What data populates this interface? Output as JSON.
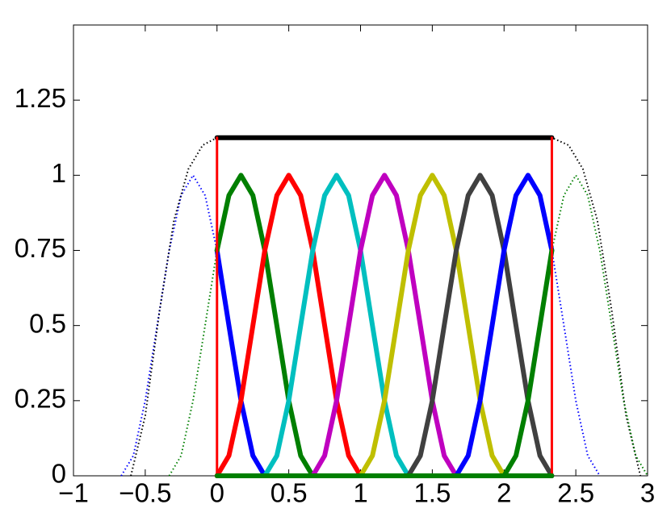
{
  "chart_data": {
    "type": "line",
    "xlim": [
      -1,
      3
    ],
    "ylim": [
      0,
      1.5
    ],
    "xticks": [
      {
        "value": -1,
        "label": "−1"
      },
      {
        "value": -0.5,
        "label": "−0.5"
      },
      0,
      0.5,
      1,
      1.5,
      2,
      2.5,
      3
    ],
    "yticks": [
      0,
      0.25,
      0.5,
      0.75,
      1,
      1.25
    ],
    "series": [
      {
        "color": "#0000ff",
        "style": "dotted",
        "x": [
          -0.667,
          -0.583,
          -0.5,
          -0.417,
          -0.333,
          -0.25,
          -0.167,
          -0.083,
          0
        ],
        "values": [
          0,
          0.067,
          0.25,
          0.5,
          0.75,
          0.933,
          1,
          0.933,
          0.75
        ]
      },
      {
        "color": "#007f00",
        "style": "dotted",
        "x": [
          -0.333,
          -0.25,
          -0.167,
          -0.083,
          0
        ],
        "values": [
          0,
          0.067,
          0.25,
          0.5,
          0.75
        ]
      },
      {
        "color": "#000000",
        "style": "dotted",
        "x": [
          -0.6,
          -0.5,
          -0.4,
          -0.3,
          -0.2,
          -0.1,
          0,
          2.333,
          2.45,
          2.55,
          2.65,
          2.75,
          2.85,
          2.95
        ],
        "values": [
          0,
          0.2,
          0.55,
          0.85,
          1.02,
          1.1,
          1.125,
          1.125,
          1.1,
          1.02,
          0.85,
          0.55,
          0.2,
          0
        ]
      },
      {
        "color": "#0000ff",
        "style": "solid",
        "x": [
          0,
          0.083,
          0.167,
          0.25,
          0.333
        ],
        "values": [
          0.75,
          0.5,
          0.25,
          0.067,
          0
        ]
      },
      {
        "color": "#007f00",
        "style": "solid",
        "x": [
          0,
          0.083,
          0.167,
          0.25,
          0.333,
          0.417,
          0.5,
          0.583,
          0.667
        ],
        "values": [
          0.75,
          0.933,
          1,
          0.933,
          0.75,
          0.5,
          0.25,
          0.067,
          0
        ]
      },
      {
        "color": "#ff0000",
        "style": "solid",
        "x": [
          0,
          0.083,
          0.167,
          0.25,
          0.333,
          0.417,
          0.5,
          0.583,
          0.667,
          0.75,
          0.833,
          0.917,
          1
        ],
        "values": [
          0,
          0.067,
          0.25,
          0.5,
          0.75,
          0.933,
          1,
          0.933,
          0.75,
          0.5,
          0.25,
          0.067,
          0
        ]
      },
      {
        "color": "#00bfbf",
        "style": "solid",
        "x": [
          0.333,
          0.417,
          0.5,
          0.583,
          0.667,
          0.75,
          0.833,
          0.917,
          1,
          1.083,
          1.167,
          1.25,
          1.333
        ],
        "values": [
          0,
          0.067,
          0.25,
          0.5,
          0.75,
          0.933,
          1,
          0.933,
          0.75,
          0.5,
          0.25,
          0.067,
          0
        ]
      },
      {
        "color": "#bf00bf",
        "style": "solid",
        "x": [
          0.667,
          0.75,
          0.833,
          0.917,
          1,
          1.083,
          1.167,
          1.25,
          1.333,
          1.417,
          1.5,
          1.583,
          1.667
        ],
        "values": [
          0,
          0.067,
          0.25,
          0.5,
          0.75,
          0.933,
          1,
          0.933,
          0.75,
          0.5,
          0.25,
          0.067,
          0
        ]
      },
      {
        "color": "#bfbf00",
        "style": "solid",
        "x": [
          1,
          1.083,
          1.167,
          1.25,
          1.333,
          1.417,
          1.5,
          1.583,
          1.667,
          1.75,
          1.833,
          1.917,
          2
        ],
        "values": [
          0,
          0.067,
          0.25,
          0.5,
          0.75,
          0.933,
          1,
          0.933,
          0.75,
          0.5,
          0.25,
          0.067,
          0
        ]
      },
      {
        "color": "#404040",
        "style": "solid",
        "x": [
          1.333,
          1.417,
          1.5,
          1.583,
          1.667,
          1.75,
          1.833,
          1.917,
          2,
          2.083,
          2.167,
          2.25,
          2.333
        ],
        "values": [
          0,
          0.067,
          0.25,
          0.5,
          0.75,
          0.933,
          1,
          0.933,
          0.75,
          0.5,
          0.25,
          0.067,
          0
        ]
      },
      {
        "color": "#0000ff",
        "style": "solid",
        "x": [
          1.667,
          1.75,
          1.833,
          1.917,
          2,
          2.083,
          2.167,
          2.25,
          2.333
        ],
        "values": [
          0,
          0.067,
          0.25,
          0.5,
          0.75,
          0.933,
          1,
          0.933,
          0.75
        ]
      },
      {
        "color": "#007f00",
        "style": "solid",
        "x": [
          2,
          2.083,
          2.167,
          2.25,
          2.333
        ],
        "values": [
          0,
          0.067,
          0.25,
          0.5,
          0.75
        ]
      },
      {
        "color": "#0000ff",
        "style": "dotted",
        "x": [
          2.333,
          2.417,
          2.5,
          2.583,
          2.667
        ],
        "values": [
          0.75,
          0.5,
          0.25,
          0.067,
          0
        ]
      },
      {
        "color": "#007f00",
        "style": "dotted",
        "x": [
          2.333,
          2.417,
          2.5,
          2.583,
          2.667,
          2.75,
          2.833,
          2.917,
          3
        ],
        "values": [
          0.75,
          0.933,
          1,
          0.933,
          0.75,
          0.5,
          0.25,
          0.067,
          0
        ]
      },
      {
        "color": "#000000",
        "style": "solid",
        "x": [
          0,
          2.333
        ],
        "values": [
          1.125,
          1.125
        ]
      },
      {
        "color": "#ff0000",
        "style": "thin",
        "x": [
          0,
          0
        ],
        "values": [
          0,
          1.125
        ]
      },
      {
        "color": "#ff0000",
        "style": "thin",
        "x": [
          2.333,
          2.333
        ],
        "values": [
          0,
          1.125
        ]
      },
      {
        "color": "#007f00",
        "style": "solid",
        "x": [
          0,
          2.333
        ],
        "values": [
          0,
          0
        ]
      }
    ]
  }
}
